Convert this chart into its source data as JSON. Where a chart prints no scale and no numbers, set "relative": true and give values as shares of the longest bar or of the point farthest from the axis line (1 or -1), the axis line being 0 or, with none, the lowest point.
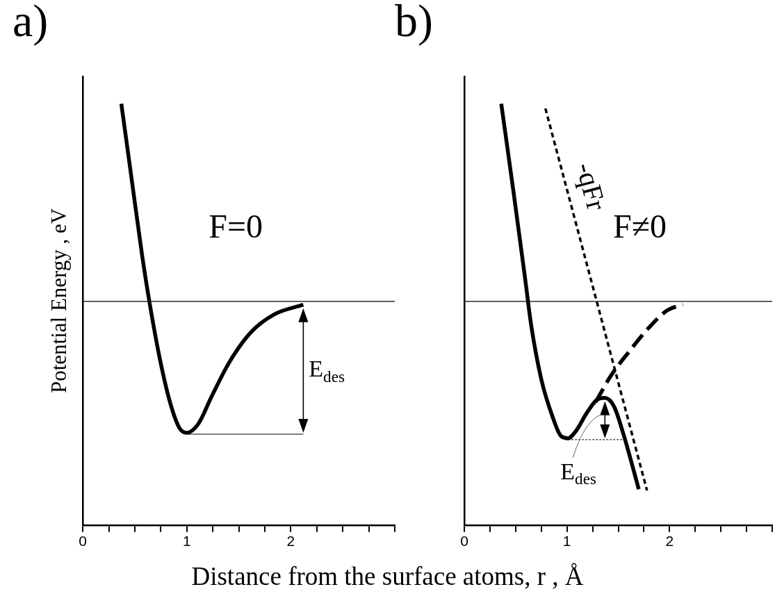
{
  "chart_data": [
    {
      "type": "line",
      "title": "a)",
      "ylabel": "Potential Energy , eV",
      "xlabel": "Distance from the surface atoms, r , Å",
      "relative": true,
      "xlim": [
        0,
        3
      ],
      "xticks": [
        0,
        {
          "value": 0.25,
          "label": null
        },
        {
          "value": 0.5,
          "label": null
        },
        {
          "value": 0.75,
          "label": null
        },
        1,
        {
          "value": 1.25,
          "label": null
        },
        {
          "value": 1.5,
          "label": null
        },
        {
          "value": 1.75,
          "label": null
        },
        2,
        {
          "value": 2.25,
          "label": null
        },
        {
          "value": 2.5,
          "label": null
        },
        {
          "value": 2.75,
          "label": null
        },
        {
          "value": 3,
          "label": null
        }
      ],
      "tick_labels": "x",
      "grid": false,
      "legend": false,
      "marker": "none",
      "series": [
        {
          "color": "#000000",
          "line_style": "solid",
          "x": [
            0.37,
            0.47,
            0.57,
            0.64,
            0.74,
            0.84,
            0.93,
            1.0,
            1.11,
            1.24,
            1.41,
            1.61,
            1.84,
            2.12
          ],
          "values": [
            1.0,
            0.82,
            0.64,
            0.53,
            0.395,
            0.29,
            0.23,
            0.219,
            0.24,
            0.306,
            0.387,
            0.456,
            0.5,
            0.523
          ]
        }
      ],
      "ref_lines": [
        {
          "axis": "y",
          "value": 0.531,
          "color": "#000000"
        }
      ],
      "annotations": [
        "F=0",
        "E$_{des}$"
      ]
    },
    {
      "type": "line",
      "title": "b)",
      "relative": true,
      "xlim": [
        0,
        3
      ],
      "xticks": [
        0,
        {
          "value": 0.25,
          "label": null
        },
        {
          "value": 0.5,
          "label": null
        },
        {
          "value": 0.75,
          "label": null
        },
        1,
        {
          "value": 1.25,
          "label": null
        },
        {
          "value": 1.5,
          "label": null
        },
        {
          "value": 1.75,
          "label": null
        },
        2,
        {
          "value": 2.25,
          "label": null
        },
        {
          "value": 2.5,
          "label": null
        },
        {
          "value": 2.75,
          "label": null
        },
        {
          "value": 3,
          "label": null
        }
      ],
      "tick_labels": "x",
      "grid": false,
      "legend": false,
      "marker": "none",
      "series": [
        {
          "color": "#000000",
          "line_style": "solid",
          "x": [
            0.36,
            0.48,
            0.59,
            0.65,
            0.75,
            0.86,
            0.94,
            1.01,
            1.09,
            1.19,
            1.29,
            1.37,
            1.46,
            1.56,
            1.7
          ],
          "values": [
            1.0,
            0.79,
            0.59,
            0.477,
            0.346,
            0.257,
            0.212,
            0.206,
            0.224,
            0.265,
            0.297,
            0.302,
            0.281,
            0.208,
            0.085
          ]
        },
        {
          "color": "#000000",
          "line_style": "dashed",
          "x": [
            1.28,
            1.43,
            1.6,
            1.8,
            1.98,
            2.13
          ],
          "values": [
            0.292,
            0.355,
            0.41,
            0.469,
            0.51,
            0.523
          ]
        },
        {
          "name": "-qFr",
          "color": "#000000",
          "line_style": "dotted",
          "x": [
            0.79,
            1.78
          ],
          "values": [
            0.989,
            0.082
          ]
        }
      ],
      "ref_lines": [
        {
          "axis": "y",
          "value": 0.531,
          "color": "#000000"
        }
      ],
      "annotations": [
        "F≠0",
        "E$_{des}$"
      ]
    }
  ]
}
